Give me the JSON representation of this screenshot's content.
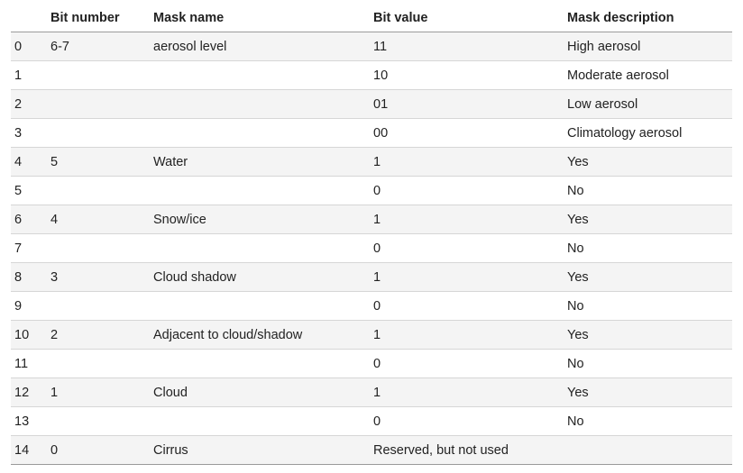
{
  "table": {
    "headers": [
      "",
      "Bit number",
      "Mask name",
      "Bit value",
      "Mask description"
    ],
    "rows": [
      [
        "0",
        "6-7",
        "aerosol level",
        "11",
        "High aerosol"
      ],
      [
        "1",
        "",
        "",
        "10",
        "Moderate aerosol"
      ],
      [
        "2",
        "",
        "",
        "01",
        "Low aerosol"
      ],
      [
        "3",
        "",
        "",
        "00",
        "Climatology aerosol"
      ],
      [
        "4",
        "5",
        "Water",
        "1",
        "Yes"
      ],
      [
        "5",
        "",
        "",
        "0",
        "No"
      ],
      [
        "6",
        "4",
        "Snow/ice",
        "1",
        "Yes"
      ],
      [
        "7",
        "",
        "",
        "0",
        "No"
      ],
      [
        "8",
        "3",
        "Cloud shadow",
        "1",
        "Yes"
      ],
      [
        "9",
        "",
        "",
        "0",
        "No"
      ],
      [
        "10",
        "2",
        "Adjacent to cloud/shadow",
        "1",
        "Yes"
      ],
      [
        "11",
        "",
        "",
        "0",
        "No"
      ],
      [
        "12",
        "1",
        "Cloud",
        "1",
        "Yes"
      ],
      [
        "13",
        "",
        "",
        "0",
        "No"
      ],
      [
        "14",
        "0",
        "Cirrus",
        "Reserved, but not used",
        ""
      ]
    ]
  }
}
